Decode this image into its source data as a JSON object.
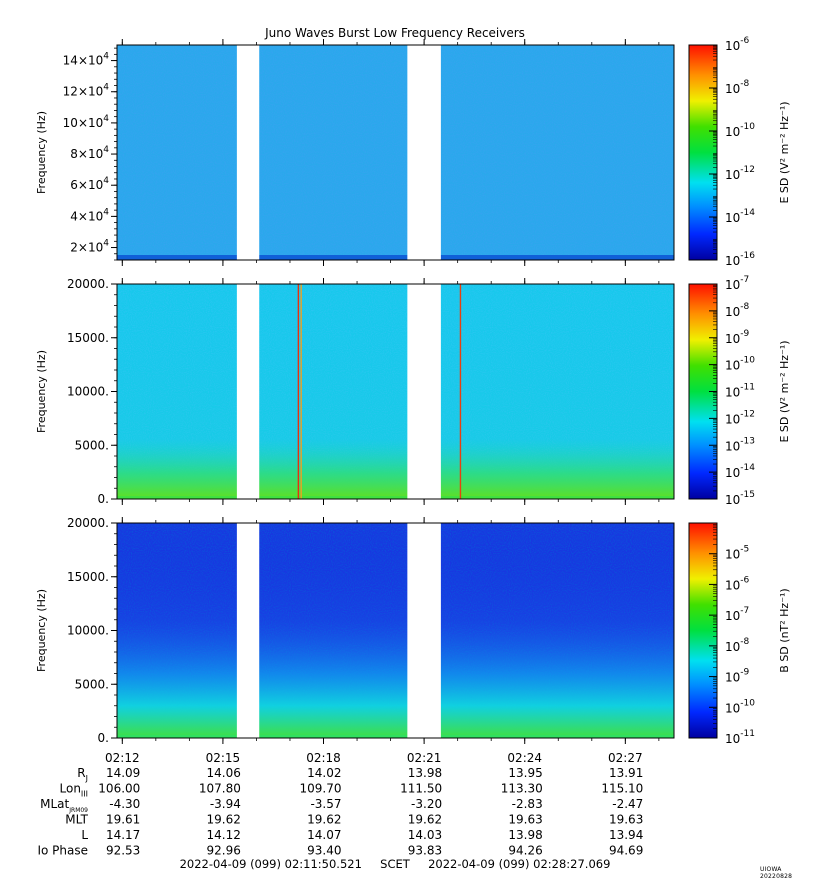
{
  "chart_data": [
    {
      "type": "heatmap",
      "title": "Juno Waves Burst Low Frequency Receivers",
      "ylabel": "Frequency (Hz)",
      "y_scale": "linear",
      "ylim": [
        12000,
        150000
      ],
      "y_ticks": [
        20000,
        40000,
        60000,
        80000,
        100000,
        120000,
        140000
      ],
      "y_tick_labels": [
        {
          "base": "2×10",
          "exp": "4"
        },
        {
          "base": "4×10",
          "exp": "4"
        },
        {
          "base": "6×10",
          "exp": "4"
        },
        {
          "base": "8×10",
          "exp": "4"
        },
        {
          "base": "10×10",
          "exp": "4"
        },
        {
          "base": "12×10",
          "exp": "4"
        },
        {
          "base": "14×10",
          "exp": "4"
        }
      ],
      "colorbar": {
        "label": "E SD (V² m⁻² Hz⁻¹)",
        "scale": "log",
        "range": [
          1e-16,
          1e-06
        ],
        "tick_exponents": [
          "-6",
          "-8",
          "-10",
          "-12",
          "-14",
          "-16"
        ]
      },
      "background_color": "#2aa8ec",
      "floor_color": "#1060d8"
    },
    {
      "type": "heatmap",
      "ylabel": "Frequency (Hz)",
      "y_scale": "linear",
      "ylim": [
        0,
        20000
      ],
      "y_ticks": [
        0,
        5000,
        10000,
        15000,
        20000
      ],
      "y_tick_labels": [
        "0.",
        "5000.",
        "10000.",
        "15000.",
        "20000."
      ],
      "colorbar": {
        "label": "E SD (V² m⁻² Hz⁻¹)",
        "scale": "log",
        "range": [
          1e-15,
          1e-07
        ],
        "tick_exponents": [
          "-7",
          "-8",
          "-9",
          "-10",
          "-11",
          "-12",
          "-13",
          "-14",
          "-15"
        ]
      },
      "background_color": "#18c8ec",
      "floor_color": "#40e040",
      "spikes": [
        {
          "time": "02:17:15",
          "color": "#e83010"
        },
        {
          "time": "02:17:20",
          "color": "#f0a020"
        },
        {
          "time": "02:22:05",
          "color": "#e84010"
        }
      ]
    },
    {
      "type": "heatmap",
      "ylabel": "Frequency (Hz)",
      "y_scale": "linear",
      "ylim": [
        0,
        20000
      ],
      "y_ticks": [
        0,
        5000,
        10000,
        15000,
        20000
      ],
      "y_tick_labels": [
        "0.",
        "5000.",
        "10000.",
        "15000.",
        "20000."
      ],
      "colorbar": {
        "label": "B SD (nT² Hz⁻¹)",
        "scale": "log",
        "range": [
          1e-11,
          0.0001
        ],
        "tick_exponents": [
          "-5",
          "-6",
          "-7",
          "-8",
          "-9",
          "-10",
          "-11"
        ]
      },
      "background_color": "#1838e0",
      "floor_color": "#30e060"
    }
  ],
  "time_axis": {
    "start": "02:11:50.521",
    "end": "02:28:27.069",
    "tick_labels": [
      "02:12",
      "02:15",
      "02:18",
      "02:21",
      "02:24",
      "02:27"
    ],
    "data_gaps": [
      [
        "02:15:25",
        "02:16:05"
      ],
      [
        "02:20:30",
        "02:21:30"
      ]
    ]
  },
  "ephemeris": {
    "rows": [
      {
        "label": "R",
        "sub": "J",
        "values": [
          "14.09",
          "14.06",
          "14.02",
          "13.98",
          "13.95",
          "13.91"
        ]
      },
      {
        "label": "Lon",
        "sub": "III",
        "values": [
          "106.00",
          "107.80",
          "109.70",
          "111.50",
          "113.30",
          "115.10"
        ]
      },
      {
        "label": "MLat",
        "sub": "JRM09",
        "values": [
          "-4.30",
          "-3.94",
          "-3.57",
          "-3.20",
          "-2.83",
          "-2.47"
        ]
      },
      {
        "label": "MLT",
        "sub": "",
        "values": [
          "19.61",
          "19.62",
          "19.62",
          "19.62",
          "19.63",
          "19.63"
        ]
      },
      {
        "label": "L",
        "sub": "",
        "values": [
          "14.17",
          "14.12",
          "14.07",
          "14.03",
          "13.98",
          "13.94"
        ]
      },
      {
        "label": "Io Phase",
        "sub": "",
        "values": [
          "92.53",
          "92.96",
          "93.40",
          "93.83",
          "94.26",
          "94.69"
        ]
      }
    ]
  },
  "footer": {
    "range_text": "2022-04-09 (099) 02:11:50.521     SCET     2022-04-09 (099) 02:28:27.069",
    "stamp": "UIOWA 20220828"
  }
}
